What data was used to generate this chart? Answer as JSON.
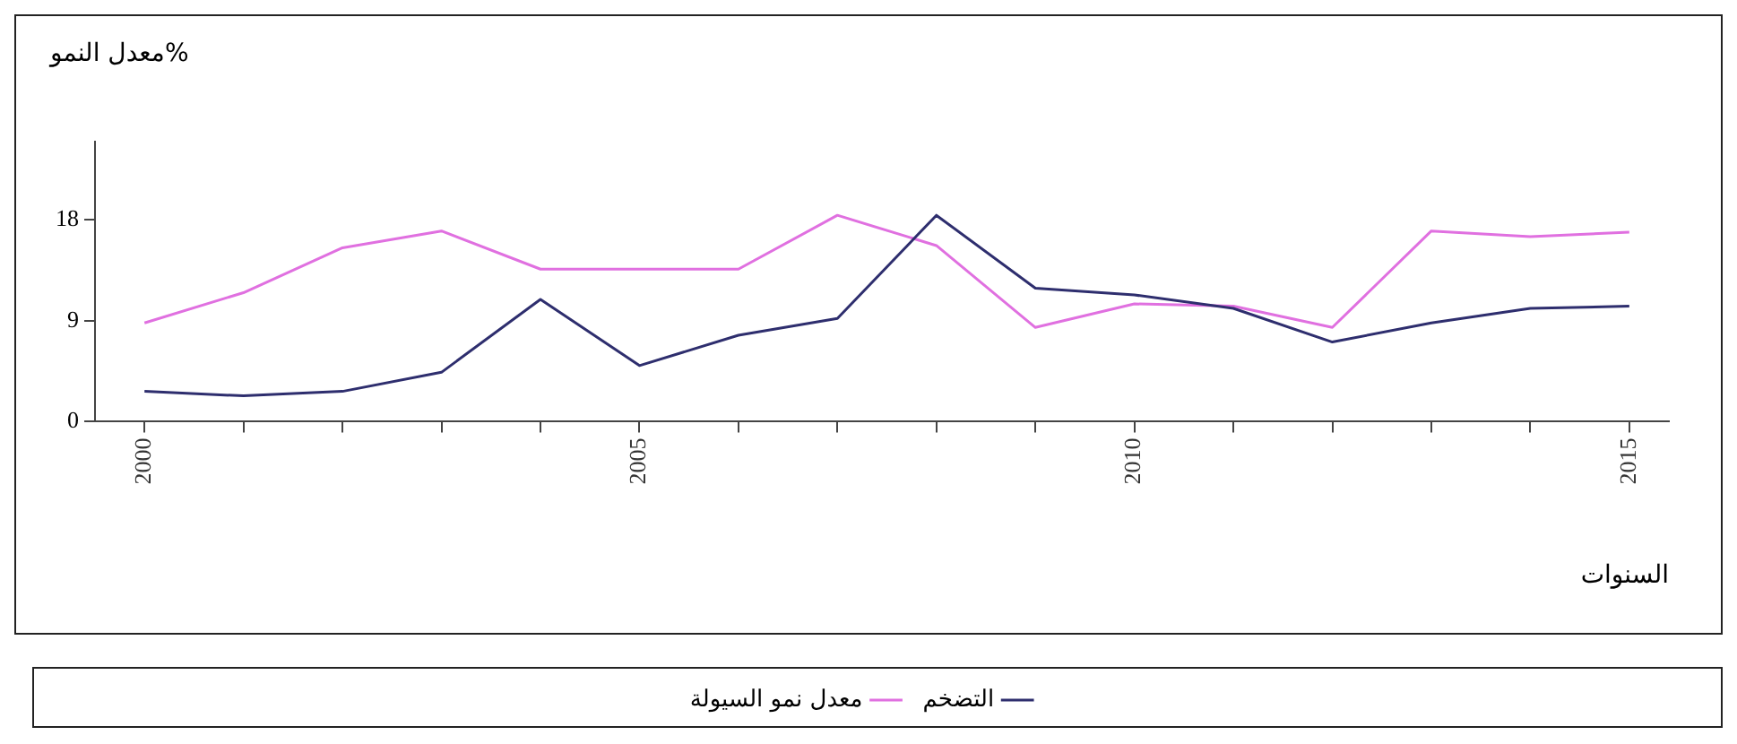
{
  "chart_data": {
    "type": "line",
    "title": "معدل النمو%",
    "xlabel": "السنوات",
    "x": [
      2000,
      2001,
      2002,
      2003,
      2004,
      2005,
      2006,
      2007,
      2008,
      2009,
      2010,
      2011,
      2012,
      2013,
      2014,
      2015
    ],
    "series": [
      {
        "name": "التضخم",
        "color": "#2e2e6e",
        "values": [
          2.7,
          2.3,
          2.7,
          4.4,
          10.9,
          5,
          7.7,
          9.2,
          18.4,
          11.9,
          11.3,
          10.1,
          7.1,
          8.8,
          10.1,
          10.3
        ]
      },
      {
        "name": "معدل نمو السيولة",
        "color": "#e070e0",
        "values": [
          8.8,
          11.5,
          15.5,
          17,
          13.6,
          13.6,
          13.6,
          18.4,
          15.7,
          8.4,
          10.5,
          10.3,
          8.4,
          17,
          16.5,
          16.9
        ]
      }
    ],
    "xlim": [
      1999.5,
      2015.4
    ],
    "ylim": [
      0,
      25
    ],
    "xticks": [
      2000,
      {
        "value": 2001,
        "label": null
      },
      {
        "value": 2002,
        "label": null
      },
      {
        "value": 2003,
        "label": null
      },
      {
        "value": 2004,
        "label": null
      },
      2005,
      {
        "value": 2006,
        "label": null
      },
      {
        "value": 2007,
        "label": null
      },
      {
        "value": 2008,
        "label": null
      },
      {
        "value": 2009,
        "label": null
      },
      2010,
      {
        "value": 2011,
        "label": null
      },
      {
        "value": 2012,
        "label": null
      },
      {
        "value": 2013,
        "label": null
      },
      {
        "value": 2014,
        "label": null
      },
      2015
    ],
    "yticks": [
      0,
      9,
      18
    ],
    "grid": false,
    "legend": "bottom",
    "marker": "none",
    "line_style": "solid"
  }
}
